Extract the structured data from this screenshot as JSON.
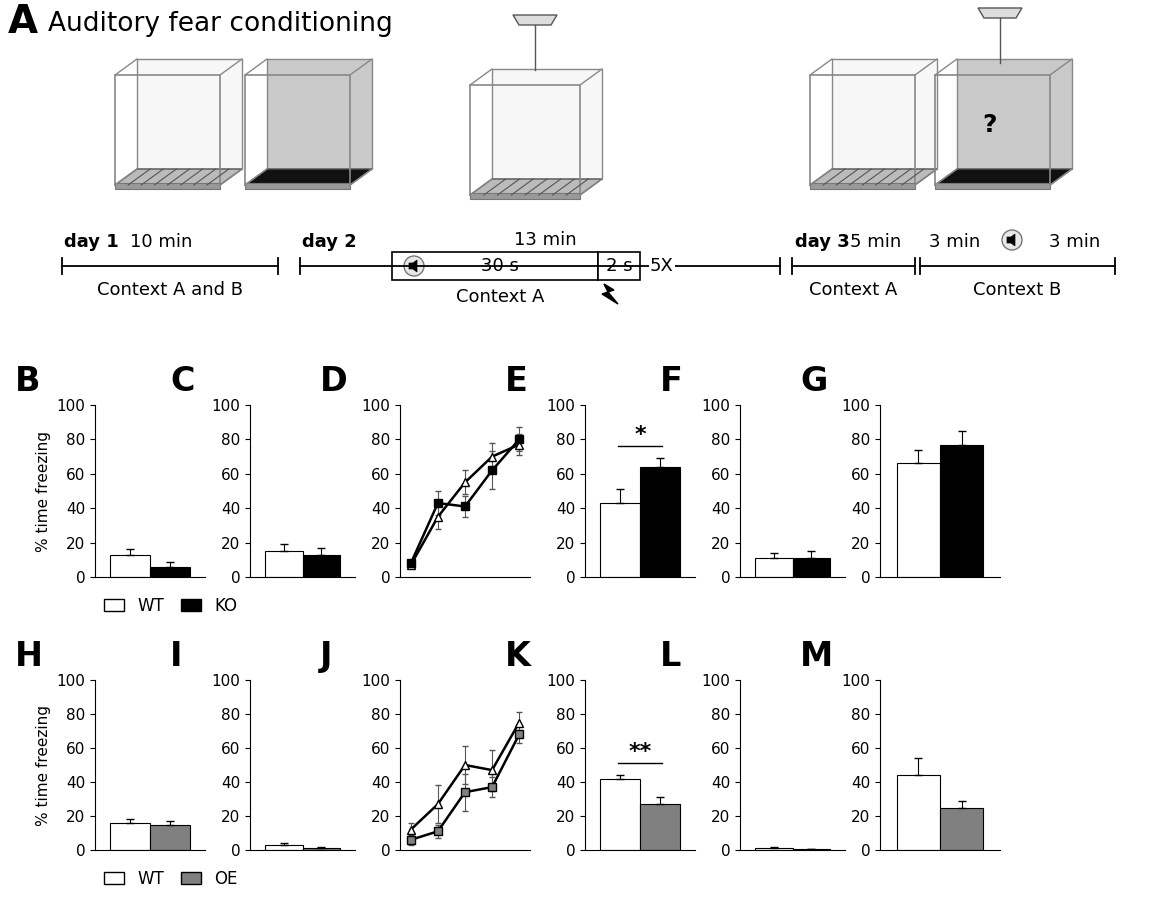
{
  "diagram": {
    "panel": "A",
    "title": "Auditory fear conditioning",
    "cage_text": "?",
    "timeline": [
      {
        "day": "day 1",
        "duration": "10 min",
        "context": "Context A and B"
      },
      {
        "day": "day 2",
        "duration": "13 min",
        "tone": "30 s",
        "shock": "2 s",
        "repeat": "5X",
        "context": "Context A"
      },
      {
        "day": "day 3",
        "duration": "5 min",
        "context": "Context A"
      },
      {
        "duration_before_tone": "3 min",
        "duration_after_tone": "3 min",
        "context": "Context B"
      }
    ]
  },
  "chart_data": [
    {
      "panel": "B",
      "type": "bar",
      "categories": [
        null
      ],
      "y_label": "% time freezing",
      "legend": "below",
      "tick_labels": "y",
      "ylim": [
        0,
        100
      ],
      "yticks": [
        0,
        20,
        40,
        60,
        80,
        100
      ],
      "series": [
        {
          "name": "WT",
          "color": "#ffffff",
          "values": [
            13
          ],
          "errors": [
            3
          ]
        },
        {
          "name": "KO",
          "color": "#000000",
          "values": [
            6
          ],
          "errors": [
            3
          ]
        }
      ]
    },
    {
      "panel": "C",
      "type": "bar",
      "categories": [
        null
      ],
      "tick_labels": "y",
      "ylim": [
        0,
        100
      ],
      "yticks": [
        0,
        20,
        40,
        60,
        80,
        100
      ],
      "series": [
        {
          "name": "WT",
          "color": "#ffffff",
          "values": [
            15
          ],
          "errors": [
            4
          ]
        },
        {
          "name": "KO",
          "color": "#000000",
          "values": [
            13
          ],
          "errors": [
            4
          ]
        }
      ]
    },
    {
      "panel": "D",
      "type": "line",
      "categories": [
        null,
        null,
        null,
        null,
        null
      ],
      "tick_labels": "y",
      "ylim": [
        0,
        100
      ],
      "yticks": [
        0,
        20,
        40,
        60,
        80,
        100
      ],
      "series": [
        {
          "name": "WT",
          "color": "#ffffff",
          "marker": "triangle",
          "values": [
            7,
            35,
            55,
            70,
            77
          ],
          "errors": [
            2,
            7,
            7,
            8,
            6
          ]
        },
        {
          "name": "KO",
          "color": "#000000",
          "marker": "square",
          "values": [
            8,
            43,
            41,
            62,
            80
          ],
          "errors": [
            2,
            7,
            6,
            11,
            7
          ]
        }
      ]
    },
    {
      "panel": "E",
      "type": "bar",
      "categories": [
        null
      ],
      "tick_labels": "y",
      "annotations": [
        "*"
      ],
      "ylim": [
        0,
        100
      ],
      "yticks": [
        0,
        20,
        40,
        60,
        80,
        100
      ],
      "series": [
        {
          "name": "WT",
          "color": "#ffffff",
          "values": [
            43
          ],
          "errors": [
            8
          ]
        },
        {
          "name": "KO",
          "color": "#000000",
          "values": [
            64
          ],
          "errors": [
            5
          ]
        }
      ]
    },
    {
      "panel": "F",
      "type": "bar",
      "categories": [
        null
      ],
      "tick_labels": "y",
      "ylim": [
        0,
        100
      ],
      "yticks": [
        0,
        20,
        40,
        60,
        80,
        100
      ],
      "series": [
        {
          "name": "WT",
          "color": "#ffffff",
          "values": [
            11
          ],
          "errors": [
            3
          ]
        },
        {
          "name": "KO",
          "color": "#000000",
          "values": [
            11
          ],
          "errors": [
            4
          ]
        }
      ]
    },
    {
      "panel": "G",
      "type": "bar",
      "categories": [
        null
      ],
      "tick_labels": "y",
      "ylim": [
        0,
        100
      ],
      "yticks": [
        0,
        20,
        40,
        60,
        80,
        100
      ],
      "series": [
        {
          "name": "WT",
          "color": "#ffffff",
          "values": [
            66
          ],
          "errors": [
            8
          ]
        },
        {
          "name": "KO",
          "color": "#000000",
          "values": [
            77
          ],
          "errors": [
            8
          ]
        }
      ]
    },
    {
      "panel": "H",
      "type": "bar",
      "categories": [
        null
      ],
      "y_label": "% time freezing",
      "legend": "below",
      "tick_labels": "y",
      "ylim": [
        0,
        100
      ],
      "yticks": [
        0,
        20,
        40,
        60,
        80,
        100
      ],
      "series": [
        {
          "name": "WT",
          "color": "#ffffff",
          "values": [
            16
          ],
          "errors": [
            2
          ]
        },
        {
          "name": "OE",
          "color": "#808080",
          "values": [
            15
          ],
          "errors": [
            2
          ]
        }
      ]
    },
    {
      "panel": "I",
      "type": "bar",
      "categories": [
        null
      ],
      "tick_labels": "y",
      "ylim": [
        0,
        100
      ],
      "yticks": [
        0,
        20,
        40,
        60,
        80,
        100
      ],
      "series": [
        {
          "name": "WT",
          "color": "#ffffff",
          "values": [
            3
          ],
          "errors": [
            1
          ]
        },
        {
          "name": "OE",
          "color": "#808080",
          "values": [
            1
          ],
          "errors": [
            0.5
          ]
        }
      ]
    },
    {
      "panel": "J",
      "type": "line",
      "categories": [
        null,
        null,
        null,
        null,
        null
      ],
      "tick_labels": "y",
      "ylim": [
        0,
        100
      ],
      "yticks": [
        0,
        20,
        40,
        60,
        80,
        100
      ],
      "series": [
        {
          "name": "WT",
          "color": "#ffffff",
          "marker": "triangle",
          "values": [
            12,
            27,
            50,
            47,
            75
          ],
          "errors": [
            4,
            11,
            11,
            12,
            6
          ]
        },
        {
          "name": "OE",
          "color": "#808080",
          "marker": "square",
          "values": [
            6,
            11,
            34,
            37,
            68
          ],
          "errors": [
            3,
            4,
            11,
            6,
            5
          ]
        }
      ]
    },
    {
      "panel": "K",
      "type": "bar",
      "categories": [
        null
      ],
      "tick_labels": "y",
      "annotations": [
        "**"
      ],
      "ylim": [
        0,
        100
      ],
      "yticks": [
        0,
        20,
        40,
        60,
        80,
        100
      ],
      "series": [
        {
          "name": "WT",
          "color": "#ffffff",
          "values": [
            42
          ],
          "errors": [
            2
          ]
        },
        {
          "name": "OE",
          "color": "#808080",
          "values": [
            27
          ],
          "errors": [
            4
          ]
        }
      ]
    },
    {
      "panel": "L",
      "type": "bar",
      "categories": [
        null
      ],
      "tick_labels": "y",
      "ylim": [
        0,
        100
      ],
      "yticks": [
        0,
        20,
        40,
        60,
        80,
        100
      ],
      "series": [
        {
          "name": "WT",
          "color": "#ffffff",
          "values": [
            1
          ],
          "errors": [
            0.5
          ]
        },
        {
          "name": "OE",
          "color": "#808080",
          "values": [
            0.5
          ],
          "errors": [
            0.3
          ]
        }
      ]
    },
    {
      "panel": "M",
      "type": "bar",
      "categories": [
        null
      ],
      "tick_labels": "y",
      "ylim": [
        0,
        100
      ],
      "yticks": [
        0,
        20,
        40,
        60,
        80,
        100
      ],
      "series": [
        {
          "name": "WT",
          "color": "#ffffff",
          "values": [
            44
          ],
          "errors": [
            10
          ]
        },
        {
          "name": "OE",
          "color": "#808080",
          "values": [
            25
          ],
          "errors": [
            4
          ]
        }
      ]
    }
  ]
}
